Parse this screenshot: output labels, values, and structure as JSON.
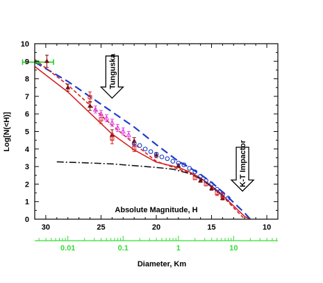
{
  "chart_data": {
    "type": "line",
    "title": "",
    "xlabel": "Absolute Magnitude, H",
    "ylabel": "Log[N(<H)]",
    "secondary_xlabel": "Diameter, Km",
    "xlim": [
      31,
      9
    ],
    "ylim": [
      0,
      10
    ],
    "x_ticks": [
      "30",
      "25",
      "20",
      "15",
      "10"
    ],
    "x_tick_values": [
      30,
      25,
      20,
      15,
      10
    ],
    "y_ticks": [
      "0",
      "1",
      "2",
      "3",
      "4",
      "5",
      "6",
      "7",
      "8",
      "9",
      "10"
    ],
    "y_tick_values": [
      0,
      1,
      2,
      3,
      4,
      5,
      6,
      7,
      8,
      9,
      10
    ],
    "secondary_ticks": [
      "0.01",
      "0.1",
      "1",
      "10"
    ],
    "secondary_tick_H": [
      28,
      23,
      18,
      13
    ],
    "grid": false,
    "annotations": [
      {
        "text": "Tunguska",
        "arrow_x": 24.0,
        "arrow_top_y": 9.3,
        "arrow_tip_y": 6.9
      },
      {
        "text": "K-T Impactor",
        "arrow_x": 12.2,
        "arrow_top_y": 4.1,
        "arrow_tip_y": 1.6
      }
    ],
    "series": [
      {
        "style": "blue-long-dash",
        "color": "#1a3ccc",
        "x": [
          31,
          28,
          25,
          22,
          20,
          18,
          17,
          16,
          15,
          14,
          13,
          12,
          11.5
        ],
        "y": [
          8.95,
          7.85,
          6.55,
          5.25,
          4.25,
          3.3,
          2.95,
          2.55,
          2.1,
          1.55,
          0.95,
          0.35,
          0.0
        ]
      },
      {
        "style": "red-short-dash",
        "color": "#d42020",
        "x": [
          31,
          28,
          26,
          24,
          22,
          20,
          18,
          17,
          16,
          15,
          14,
          13,
          12
        ],
        "y": [
          9.1,
          7.65,
          6.5,
          5.35,
          4.3,
          3.3,
          2.85,
          2.65,
          2.3,
          1.85,
          1.3,
          0.65,
          0.0
        ]
      },
      {
        "style": "red-solid",
        "color": "#d42020",
        "x": [
          31,
          28,
          26,
          24,
          22,
          20,
          18,
          17,
          16,
          15,
          14,
          13,
          12,
          11.5
        ],
        "y": [
          8.7,
          7.25,
          6.05,
          4.85,
          3.95,
          3.25,
          2.95,
          2.7,
          2.35,
          1.9,
          1.35,
          0.75,
          0.15,
          0.0
        ]
      },
      {
        "style": "black-dash-dot",
        "color": "#111111",
        "x": [
          29,
          26,
          24,
          22,
          20,
          18.5,
          17,
          16,
          15,
          14
        ],
        "y": [
          3.27,
          3.2,
          3.15,
          3.05,
          2.95,
          2.85,
          2.6,
          2.3,
          1.85,
          1.4
        ]
      }
    ],
    "markers": [
      {
        "kind": "green-errorbar",
        "color": "#22cc22",
        "x": 30.7,
        "y": 8.95,
        "xerr": 1.4
      },
      {
        "kind": "dark-triangle",
        "color": "#7a1010",
        "points": [
          {
            "x": 29.9,
            "y": 9.0,
            "err": 0.35
          },
          {
            "x": 28.0,
            "y": 7.5,
            "err": 0.2
          },
          {
            "x": 26.0,
            "y": 6.45,
            "err": 0.25
          },
          {
            "x": 24.0,
            "y": 4.8,
            "err": 0.3
          },
          {
            "x": 22.0,
            "y": 4.45,
            "err": 0.2
          },
          {
            "x": 20.0,
            "y": 3.65,
            "err": 0.15
          },
          {
            "x": 18.0,
            "y": 3.05,
            "err": 0.1
          },
          {
            "x": 16.0,
            "y": 2.2,
            "err": 0.1
          },
          {
            "x": 15.0,
            "y": 1.75,
            "err": 0.1
          },
          {
            "x": 14.0,
            "y": 1.2,
            "err": 0.1
          }
        ]
      },
      {
        "kind": "red-square",
        "color": "#d42020",
        "points": [
          {
            "x": 26.0,
            "y": 6.95,
            "err": 0.3
          },
          {
            "x": 25.0,
            "y": 5.7,
            "err": 0.25
          },
          {
            "x": 24.0,
            "y": 4.6,
            "err": 0.3
          },
          {
            "x": 22.0,
            "y": 4.05,
            "err": 0.2
          },
          {
            "x": 16.5,
            "y": 2.35,
            "err": 0.1
          },
          {
            "x": 15.5,
            "y": 2.0,
            "err": 0.1
          },
          {
            "x": 14.5,
            "y": 1.5,
            "err": 0.15
          },
          {
            "x": 14.0,
            "y": 1.35,
            "err": 0.15
          }
        ]
      },
      {
        "kind": "magenta-triangle",
        "color": "#e040e0",
        "points": [
          {
            "x": 25.5,
            "y": 6.25,
            "err": 0.2
          },
          {
            "x": 25.0,
            "y": 6.0,
            "err": 0.2
          },
          {
            "x": 24.5,
            "y": 5.75,
            "err": 0.2
          },
          {
            "x": 24.0,
            "y": 5.5,
            "err": 0.2
          },
          {
            "x": 23.5,
            "y": 5.2,
            "err": 0.2
          },
          {
            "x": 23.0,
            "y": 5.0,
            "err": 0.2
          },
          {
            "x": 22.5,
            "y": 4.8,
            "err": 0.2
          }
        ]
      },
      {
        "kind": "blue-circle",
        "color": "#1a3ccc",
        "points": [
          {
            "x": 22.0,
            "y": 4.3
          },
          {
            "x": 21.5,
            "y": 4.2
          },
          {
            "x": 21.0,
            "y": 4.0
          },
          {
            "x": 20.5,
            "y": 3.85
          },
          {
            "x": 20.0,
            "y": 3.7
          },
          {
            "x": 19.5,
            "y": 3.55
          },
          {
            "x": 19.0,
            "y": 3.45
          },
          {
            "x": 18.5,
            "y": 3.3
          },
          {
            "x": 18.0,
            "y": 3.2
          },
          {
            "x": 17.5,
            "y": 3.1
          },
          {
            "x": 17.0,
            "y": 2.9
          },
          {
            "x": 16.5,
            "y": 2.7
          },
          {
            "x": 16.0,
            "y": 2.45
          },
          {
            "x": 15.5,
            "y": 2.2
          },
          {
            "x": 15.0,
            "y": 2.0
          },
          {
            "x": 14.5,
            "y": 1.7
          },
          {
            "x": 14.0,
            "y": 1.45
          },
          {
            "x": 13.5,
            "y": 1.2
          }
        ]
      }
    ]
  }
}
